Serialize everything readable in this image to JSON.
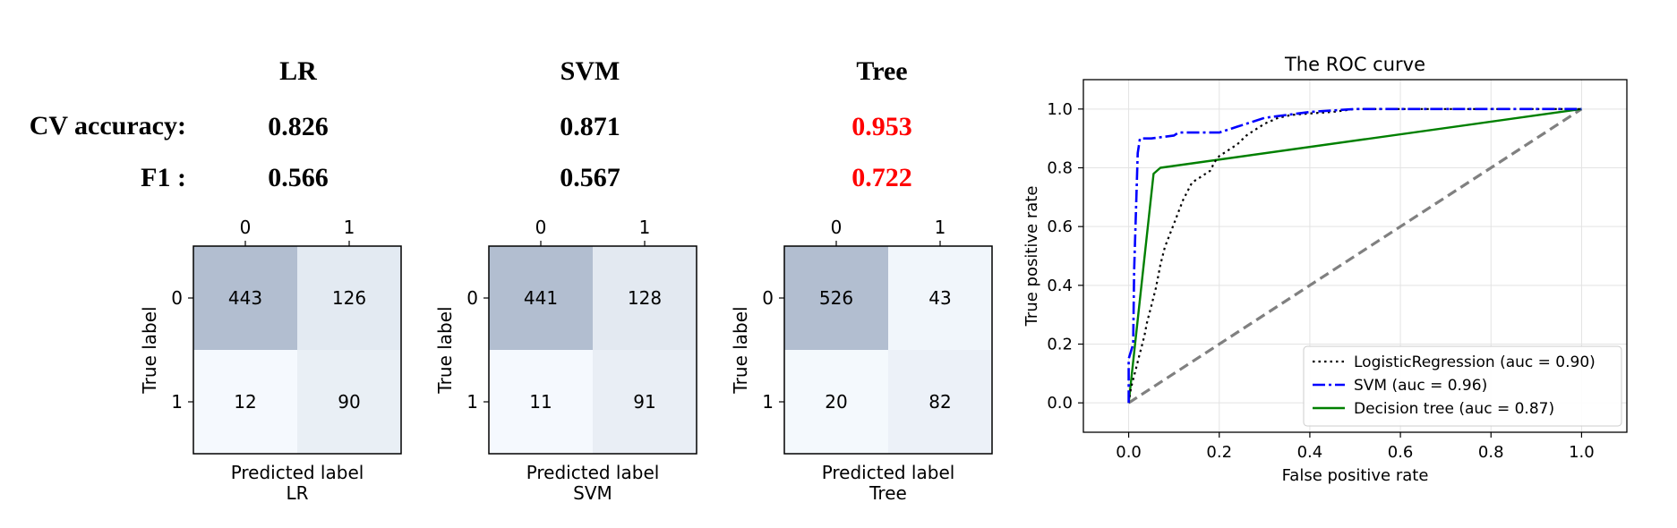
{
  "summary": {
    "models": [
      "LR",
      "SVM",
      "Tree"
    ],
    "rows": [
      {
        "label": "CV accuracy:",
        "values": [
          "0.826",
          "0.871",
          "0.953"
        ]
      },
      {
        "label": "F1 :",
        "values": [
          "0.566",
          "0.567",
          "0.722"
        ]
      }
    ],
    "best_index": 2,
    "best_color": "#ff0000",
    "text_color": "#000000"
  },
  "chart_data": [
    {
      "type": "heatmap",
      "model": "LR",
      "title": "LR",
      "xlabel": "Predicted label",
      "ylabel": "True label",
      "x_ticks": [
        "0",
        "1"
      ],
      "y_ticks": [
        "0",
        "1"
      ],
      "matrix": [
        [
          443,
          126
        ],
        [
          12,
          90
        ]
      ],
      "colormap": "Blues (alpha 0.3)"
    },
    {
      "type": "heatmap",
      "model": "SVM",
      "title": "SVM",
      "xlabel": "Predicted label",
      "ylabel": "True label",
      "x_ticks": [
        "0",
        "1"
      ],
      "y_ticks": [
        "0",
        "1"
      ],
      "matrix": [
        [
          441,
          128
        ],
        [
          11,
          91
        ]
      ],
      "colormap": "Blues (alpha 0.3)"
    },
    {
      "type": "heatmap",
      "model": "Tree",
      "title": "Tree",
      "xlabel": "Predicted label",
      "ylabel": "True label",
      "x_ticks": [
        "0",
        "1"
      ],
      "y_ticks": [
        "0",
        "1"
      ],
      "matrix": [
        [
          526,
          43
        ],
        [
          20,
          82
        ]
      ],
      "colormap": "Blues (alpha 0.3)"
    },
    {
      "type": "line",
      "title": "The ROC curve",
      "xlabel": "False positive rate",
      "ylabel": "True positive rate",
      "xlim": [
        -0.1,
        1.1
      ],
      "ylim": [
        -0.1,
        1.1
      ],
      "x_ticks": [
        0.0,
        0.2,
        0.4,
        0.6,
        0.8,
        1.0
      ],
      "y_ticks": [
        0.0,
        0.2,
        0.4,
        0.6,
        0.8,
        1.0
      ],
      "tick_labels": [
        "0.0",
        "0.2",
        "0.4",
        "0.6",
        "0.8",
        "1.0"
      ],
      "grid": true,
      "legend_position": "lower-right",
      "series": [
        {
          "name": "LogisticRegression (auc = 0.90)",
          "color": "#000000",
          "style": "dotted",
          "points": [
            [
              0,
              0
            ],
            [
              0.005,
              0.05
            ],
            [
              0.01,
              0.08
            ],
            [
              0.015,
              0.11
            ],
            [
              0.02,
              0.14
            ],
            [
              0.025,
              0.17
            ],
            [
              0.03,
              0.2
            ],
            [
              0.035,
              0.23
            ],
            [
              0.04,
              0.27
            ],
            [
              0.045,
              0.3
            ],
            [
              0.05,
              0.33
            ],
            [
              0.055,
              0.36
            ],
            [
              0.06,
              0.39
            ],
            [
              0.065,
              0.43
            ],
            [
              0.07,
              0.47
            ],
            [
              0.075,
              0.5
            ],
            [
              0.08,
              0.53
            ],
            [
              0.09,
              0.57
            ],
            [
              0.1,
              0.61
            ],
            [
              0.11,
              0.65
            ],
            [
              0.12,
              0.69
            ],
            [
              0.13,
              0.72
            ],
            [
              0.14,
              0.75
            ],
            [
              0.16,
              0.77
            ],
            [
              0.18,
              0.79
            ],
            [
              0.19,
              0.82
            ],
            [
              0.2,
              0.84
            ],
            [
              0.22,
              0.86
            ],
            [
              0.24,
              0.88
            ],
            [
              0.26,
              0.91
            ],
            [
              0.28,
              0.93
            ],
            [
              0.3,
              0.95
            ],
            [
              0.33,
              0.97
            ],
            [
              0.36,
              0.98
            ],
            [
              0.4,
              0.985
            ],
            [
              0.45,
              0.99
            ],
            [
              0.5,
              1.0
            ],
            [
              0.6,
              1.0
            ],
            [
              0.8,
              1.0
            ],
            [
              1.0,
              1.0
            ]
          ]
        },
        {
          "name": "SVM (auc = 0.96)",
          "color": "#0000ff",
          "style": "dashdot",
          "points": [
            [
              0,
              0
            ],
            [
              0.0,
              0.15
            ],
            [
              0.01,
              0.2
            ],
            [
              0.012,
              0.45
            ],
            [
              0.015,
              0.6
            ],
            [
              0.018,
              0.75
            ],
            [
              0.02,
              0.85
            ],
            [
              0.025,
              0.9
            ],
            [
              0.05,
              0.9
            ],
            [
              0.1,
              0.91
            ],
            [
              0.11,
              0.92
            ],
            [
              0.2,
              0.92
            ],
            [
              0.22,
              0.93
            ],
            [
              0.24,
              0.94
            ],
            [
              0.26,
              0.95
            ],
            [
              0.28,
              0.96
            ],
            [
              0.3,
              0.97
            ],
            [
              0.35,
              0.98
            ],
            [
              0.4,
              0.99
            ],
            [
              0.5,
              1.0
            ],
            [
              0.8,
              1.0
            ],
            [
              1.0,
              1.0
            ]
          ]
        },
        {
          "name": "Decision tree (auc = 0.87)",
          "color": "#008000",
          "style": "solid",
          "points": [
            [
              0,
              0
            ],
            [
              0.055,
              0.78
            ],
            [
              0.07,
              0.8
            ],
            [
              1.0,
              1.0
            ]
          ]
        },
        {
          "name": "",
          "color": "#808080",
          "style": "dashed",
          "points": [
            [
              0,
              0
            ],
            [
              1,
              1
            ]
          ]
        }
      ]
    }
  ]
}
